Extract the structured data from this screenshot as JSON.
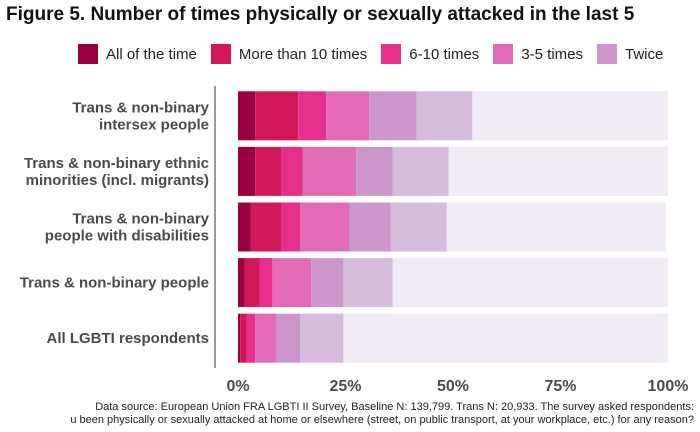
{
  "chart_data": {
    "type": "bar",
    "orientation": "horizontal",
    "stacked": true,
    "title": "Figure 5. Number of times physically or sexually attacked in the last 5",
    "categories": [
      [
        "Trans & non-binary",
        "intersex people"
      ],
      [
        "Trans & non-binary ethnic",
        "minorities (incl. migrants)"
      ],
      [
        "Trans & non-binary",
        "people with disabilities"
      ],
      [
        "Trans & non-binary people"
      ],
      [
        "All LGBTI respondents"
      ]
    ],
    "series": [
      {
        "name": "All of the time",
        "color": "#99003f",
        "values": [
          4,
          4,
          3,
          1.5,
          0.5
        ]
      },
      {
        "name": "More than 10 times",
        "color": "#d0185a",
        "values": [
          10,
          6,
          7,
          3.5,
          1.5
        ]
      },
      {
        "name": "6-10 times",
        "color": "#e72f8c",
        "values": [
          6.5,
          5,
          4.5,
          3,
          2
        ]
      },
      {
        "name": "3-5 times",
        "color": "#e16cb5",
        "values": [
          10,
          12.5,
          11.5,
          9,
          5
        ]
      },
      {
        "name": "Twice",
        "color": "#cb97cb",
        "values": [
          11,
          8.5,
          9.5,
          7.5,
          5.5
        ]
      },
      {
        "color": "#d5bcdc",
        "values": [
          13,
          13,
          13,
          11.5,
          10
        ]
      },
      {
        "color": "#efeaf4",
        "values": [
          45.5,
          51,
          51,
          64,
          75.5
        ]
      }
    ],
    "xlim": [
      0,
      100
    ],
    "x_ticks": [
      "0%",
      "25%",
      "50%",
      "75%",
      "100%"
    ],
    "xlabel": "",
    "ylabel": "",
    "grid": false,
    "legend_position": "top"
  },
  "source": {
    "line1": "Data source: European Union FRA LGBTI II Survey, Baseline N: 139,799. Trans N: 20,933. The survey asked respondents:",
    "line2": "u been physically or sexually attacked at home or elsewhere (street, on public transport, at your workplace, etc.) for any reason?"
  }
}
